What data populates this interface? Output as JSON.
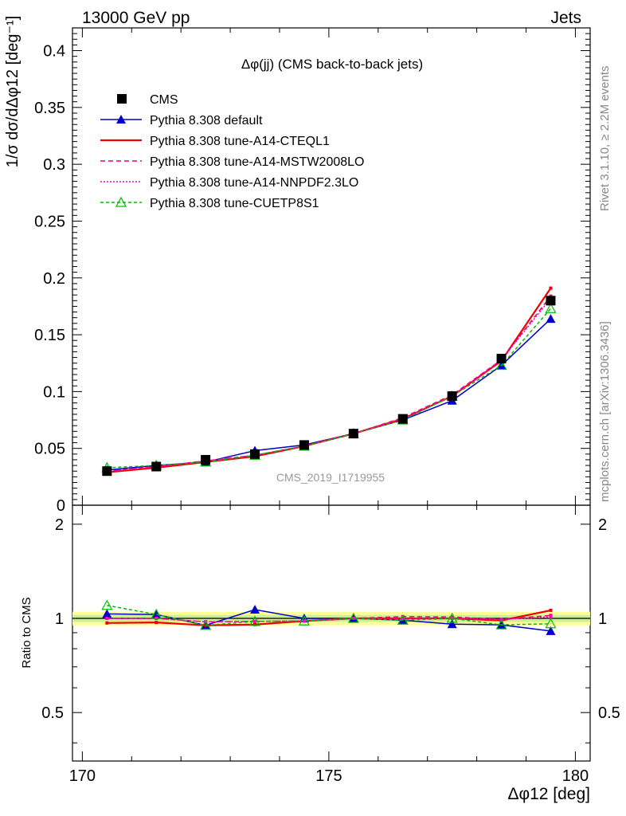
{
  "header": {
    "left": "13000 GeV pp",
    "right": "Jets"
  },
  "side_labels": {
    "rivet": "Rivet 3.1.10, ≥ 2.2M events",
    "mcplots": "mcplots.cern.ch [arXiv:1306.3436]"
  },
  "chart_data": {
    "type": "line",
    "title": "Δφ(jj) (CMS back-to-back jets)",
    "watermark": "CMS_2019_I1719955",
    "xlabel": "Δφ12 [deg]",
    "ylabel": "1/σ dσ/dΔφ12 [deg⁻¹]",
    "ratio_ylabel": "Ratio to CMS",
    "xlim": [
      169.8,
      180.3
    ],
    "ylim": [
      0,
      0.42
    ],
    "ratio_ylim": [
      0.35,
      2.3
    ],
    "x_ticks": [
      "170",
      "175",
      "180"
    ],
    "y_ticks": [
      "0",
      "0.05",
      "0.1",
      "0.15",
      "0.2",
      "0.25",
      "0.3",
      "0.35",
      "0.4"
    ],
    "ratio_ticks": [
      "0.5",
      "1",
      "2"
    ],
    "legend_position": "top-left",
    "x": [
      170.5,
      171.5,
      172.5,
      173.5,
      174.5,
      175.5,
      176.5,
      177.5,
      178.5,
      179.5
    ],
    "data": {
      "name": "CMS",
      "values": [
        0.03,
        0.034,
        0.04,
        0.045,
        0.053,
        0.063,
        0.076,
        0.096,
        0.129,
        0.18
      ]
    },
    "series": [
      {
        "name": "Pythia 8.308 default",
        "color": "#0000cc",
        "dash": "",
        "marker": "triangle-filled",
        "values": [
          0.031,
          0.035,
          0.038,
          0.048,
          0.053,
          0.063,
          0.075,
          0.092,
          0.123,
          0.164
        ]
      },
      {
        "name": "Pythia 8.308 tune-A14-CTEQL1",
        "color": "#ee0000",
        "dash": "",
        "marker": "none",
        "values": [
          0.029,
          0.033,
          0.038,
          0.043,
          0.052,
          0.063,
          0.076,
          0.096,
          0.127,
          0.191
        ]
      },
      {
        "name": "Pythia 8.308 tune-A14-MSTW2008LO",
        "color": "#ee0077",
        "dash": "6,4",
        "marker": "none",
        "values": [
          0.03,
          0.034,
          0.039,
          0.044,
          0.052,
          0.063,
          0.077,
          0.097,
          0.128,
          0.184
        ]
      },
      {
        "name": "Pythia 8.308 tune-A14-NNPDF2.3LO",
        "color": "#ff00cc",
        "dash": "2,2",
        "marker": "none",
        "values": [
          0.03,
          0.034,
          0.039,
          0.044,
          0.052,
          0.063,
          0.076,
          0.096,
          0.128,
          0.182
        ]
      },
      {
        "name": "Pythia 8.308 tune-CUETP8S1",
        "color": "#00bb00",
        "dash": "4,3",
        "marker": "triangle-open",
        "values": [
          0.033,
          0.035,
          0.038,
          0.044,
          0.052,
          0.063,
          0.075,
          0.096,
          0.123,
          0.173
        ]
      }
    ]
  }
}
